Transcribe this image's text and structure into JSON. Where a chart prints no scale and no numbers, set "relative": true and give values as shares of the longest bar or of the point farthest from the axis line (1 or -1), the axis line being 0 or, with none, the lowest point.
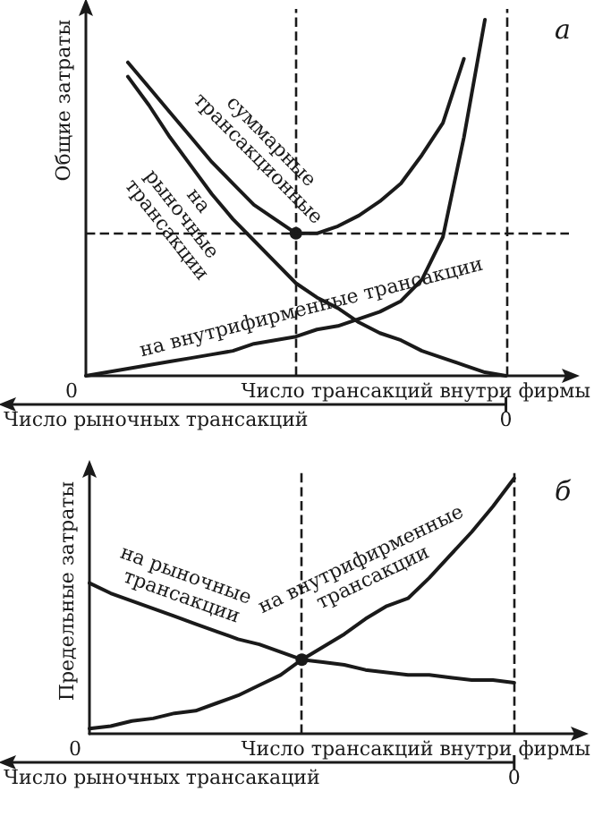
{
  "chart_data": [
    {
      "type": "line",
      "relative": true,
      "title": "а",
      "ylabel": "Общие затраты",
      "xlabel": "Число трансакций внутри фирмы",
      "x2label": "Число рыночных трансакций",
      "annotations": [
        "0",
        "0"
      ],
      "categories": [
        null,
        null,
        null,
        null,
        null,
        null,
        null,
        null,
        null,
        null,
        null,
        null,
        null,
        null,
        null,
        null,
        null,
        null,
        null,
        null,
        null,
        null,
        null,
        null
      ],
      "series": [
        {
          "name": "суммарные трансакционные",
          "color": "#1a1a1a",
          "values": [
            null,
            null,
            0.88,
            0.81,
            0.74,
            0.67,
            0.6,
            0.54,
            0.48,
            0.44,
            0.4,
            0.4,
            0.42,
            0.45,
            0.49,
            0.54,
            0.62,
            0.71,
            0.89,
            null,
            null,
            null,
            null,
            null
          ]
        },
        {
          "name": "на рыночные трансакции",
          "color": "#1a1a1a",
          "values": [
            null,
            null,
            0.84,
            0.76,
            0.67,
            0.59,
            0.51,
            0.44,
            0.38,
            0.32,
            0.26,
            0.22,
            0.19,
            0.15,
            0.12,
            0.1,
            0.07,
            0.05,
            0.03,
            0.01,
            0,
            null,
            null,
            null
          ]
        },
        {
          "name": "на внутрифирменные трансакции",
          "color": "#1a1a1a",
          "values": [
            0,
            0.01,
            0.02,
            0.03,
            0.04,
            0.05,
            0.06,
            0.07,
            0.09,
            0.1,
            0.11,
            0.13,
            0.14,
            0.16,
            0.18,
            0.21,
            0.27,
            0.39,
            0.67,
            1,
            null,
            null,
            null,
            null
          ]
        }
      ]
    },
    {
      "type": "line",
      "relative": true,
      "title": "б",
      "ylabel": "Предельные затраты",
      "xlabel": "Число трансакций внутри фирмы",
      "x2label": "Число рыночных трансакаций",
      "annotations": [
        "0",
        "0"
      ],
      "categories": [
        null,
        null,
        null,
        null,
        null,
        null,
        null,
        null,
        null,
        null,
        null,
        null,
        null,
        null,
        null,
        null,
        null,
        null,
        null,
        null,
        null,
        null,
        null,
        null
      ],
      "series": [
        {
          "name": "на рыночные трансакции",
          "color": "#1a1a1a",
          "values": [
            0.59,
            0.55,
            0.52,
            0.49,
            0.46,
            0.43,
            0.4,
            0.37,
            0.35,
            0.32,
            0.29,
            0.28,
            0.27,
            0.25,
            0.24,
            0.23,
            0.23,
            0.22,
            0.21,
            0.21,
            0.2,
            null,
            null,
            null
          ]
        },
        {
          "name": "на внутрифирменные трансакции",
          "color": "#1a1a1a",
          "values": [
            0.02,
            0.03,
            0.05,
            0.06,
            0.08,
            0.09,
            0.12,
            0.15,
            0.19,
            0.23,
            0.29,
            0.34,
            0.39,
            0.45,
            0.5,
            0.53,
            0.61,
            0.7,
            0.79,
            0.89,
            1,
            null,
            null,
            null
          ]
        }
      ]
    }
  ]
}
